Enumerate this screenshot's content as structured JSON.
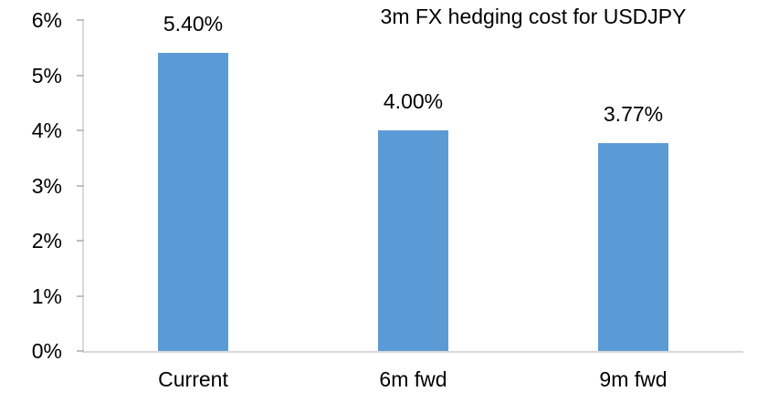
{
  "chart_data": {
    "type": "bar",
    "title": "3m FX hedging cost for USDJPY",
    "categories": [
      "Current",
      "6m fwd",
      "9m fwd"
    ],
    "values": [
      5.4,
      4.0,
      3.77
    ],
    "data_labels": [
      "5.40%",
      "4.00%",
      "3.77%"
    ],
    "xlabel": "",
    "ylabel": "",
    "ylim": [
      0,
      6
    ],
    "ytick_step": 1,
    "ytick_labels": [
      "0%",
      "1%",
      "2%",
      "3%",
      "4%",
      "5%",
      "6%"
    ],
    "grid": false,
    "legend": null,
    "colors": {
      "bar": "#5B9BD5",
      "axis_line": "#D9D9D9",
      "tick_mark": "#BFBFBF",
      "text": "#000000",
      "background": "#FFFFFF"
    }
  }
}
